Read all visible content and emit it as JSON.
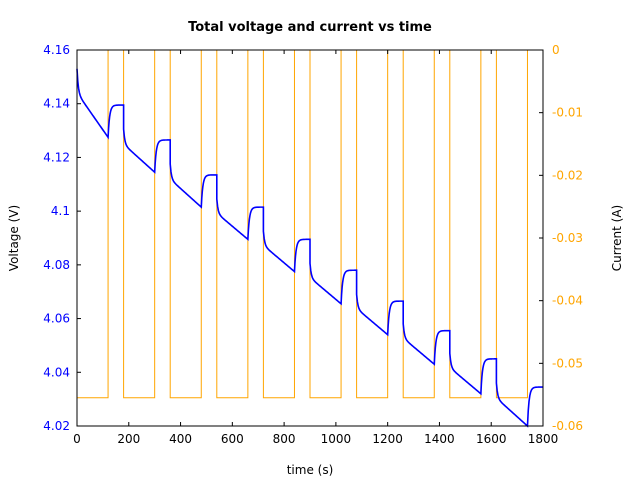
{
  "chart_data": {
    "type": "line",
    "title": "Total voltage and current vs time",
    "xlabel": "time (s)",
    "ylabel_left": "Voltage (V)",
    "ylabel_right": "Current (A)",
    "xlim": [
      0,
      1800
    ],
    "ylim_left": [
      4.02,
      4.16
    ],
    "ylim_right": [
      -0.06,
      0
    ],
    "x_ticks": [
      "0",
      "200",
      "400",
      "600",
      "800",
      "1000",
      "1200",
      "1400",
      "1600",
      "1800"
    ],
    "y_left_ticks": [
      "4.02",
      "4.04",
      "4.06",
      "4.08",
      "4.1",
      "4.12",
      "4.14",
      "4.16"
    ],
    "y_right_ticks": [
      "-0.06",
      "-0.05",
      "-0.04",
      "-0.03",
      "-0.02",
      "-0.01",
      "0"
    ],
    "colors": {
      "voltage": "#0000ff",
      "current": "#ffa500",
      "left_axis": "#0000ff",
      "right_axis": "#ffa500"
    },
    "series": [
      {
        "name": "Total voltage",
        "axis": "left",
        "color": "#0000ff",
        "cycles": [
          {
            "t_start": 0,
            "v_start": 4.153,
            "t_end": 120,
            "v_end": 4.1275,
            "v_recover": 4.1395
          },
          {
            "t_start": 180,
            "v_start": 4.1305,
            "t_end": 300,
            "v_end": 4.1145,
            "v_recover": 4.1265
          },
          {
            "t_start": 360,
            "v_start": 4.1175,
            "t_end": 480,
            "v_end": 4.1015,
            "v_recover": 4.1135
          },
          {
            "t_start": 540,
            "v_start": 4.1045,
            "t_end": 660,
            "v_end": 4.0895,
            "v_recover": 4.1015
          },
          {
            "t_start": 720,
            "v_start": 4.0925,
            "t_end": 840,
            "v_end": 4.0775,
            "v_recover": 4.0895
          },
          {
            "t_start": 900,
            "v_start": 4.0805,
            "t_end": 1020,
            "v_end": 4.0655,
            "v_recover": 4.078
          },
          {
            "t_start": 1080,
            "v_start": 4.069,
            "t_end": 1200,
            "v_end": 4.054,
            "v_recover": 4.0665
          },
          {
            "t_start": 1260,
            "v_start": 4.058,
            "t_end": 1380,
            "v_end": 4.043,
            "v_recover": 4.0555
          },
          {
            "t_start": 1440,
            "v_start": 4.047,
            "t_end": 1560,
            "v_end": 4.032,
            "v_recover": 4.045
          },
          {
            "t_start": 1620,
            "v_start": 4.036,
            "t_end": 1740,
            "v_end": 4.02,
            "v_recover": 4.0345
          }
        ]
      },
      {
        "name": "Current",
        "axis": "right",
        "color": "#ffa500",
        "low_value": -0.0555,
        "high_value": 0,
        "discharge_intervals": [
          [
            0,
            120
          ],
          [
            180,
            300
          ],
          [
            360,
            480
          ],
          [
            540,
            660
          ],
          [
            720,
            840
          ],
          [
            900,
            1020
          ],
          [
            1080,
            1200
          ],
          [
            1260,
            1380
          ],
          [
            1440,
            1560
          ],
          [
            1620,
            1740
          ]
        ]
      }
    ]
  }
}
